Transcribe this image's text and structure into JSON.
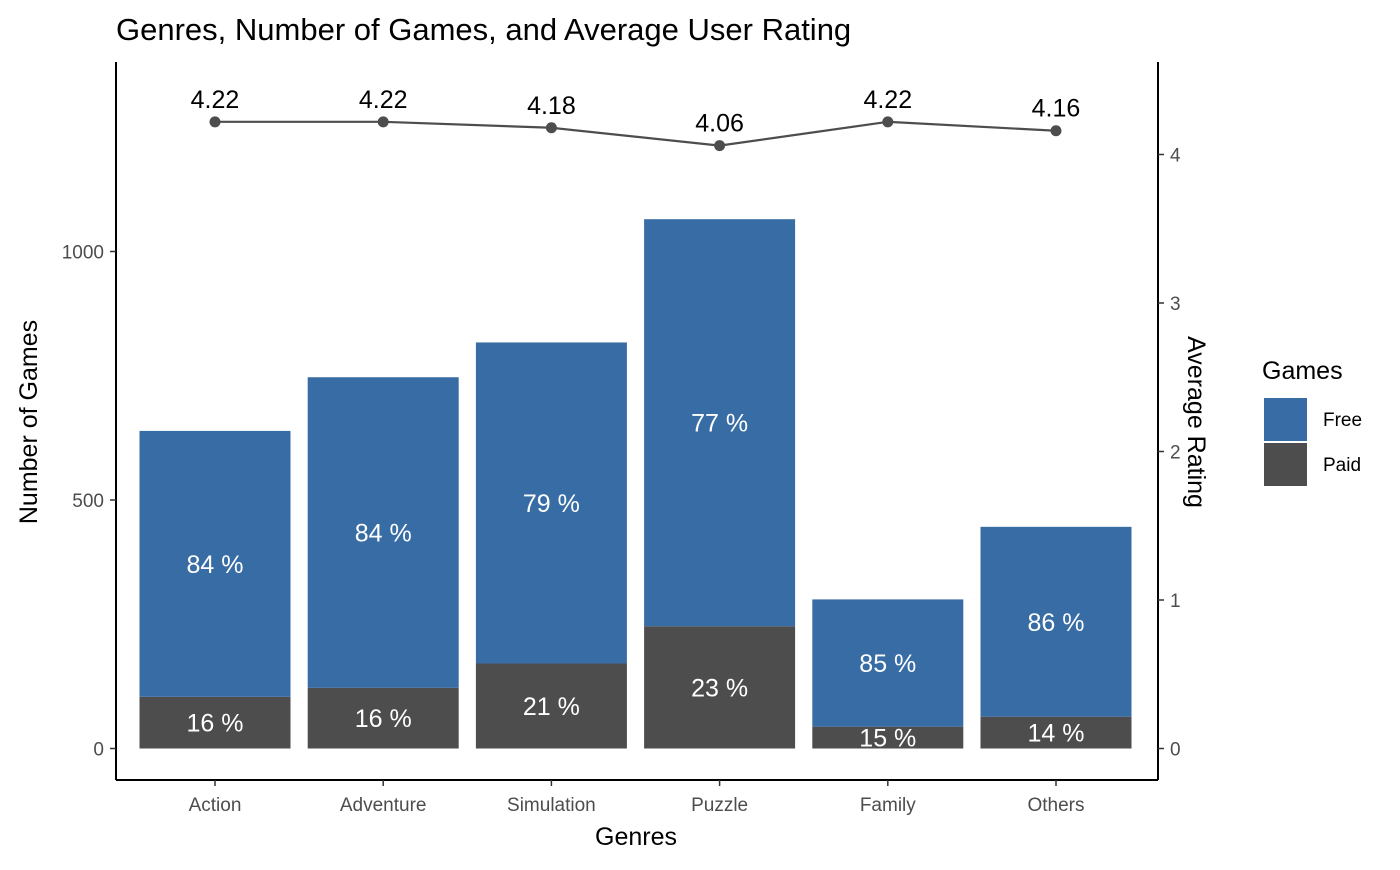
{
  "chart_data": {
    "type": "bar",
    "title": "Genres, Number of Games, and Average User Rating",
    "xlabel": "Genres",
    "ylabel": "Number of Games",
    "y2label": "Average Rating",
    "ylim": [
      0,
      1300
    ],
    "y2lim": [
      0,
      4.55
    ],
    "yticks": [
      0,
      500,
      1000
    ],
    "y2ticks": [
      0,
      1,
      2,
      3,
      4
    ],
    "categories": [
      "Action",
      "Adventure",
      "Simulation",
      "Puzzle",
      "Family",
      "Others"
    ],
    "stacked": true,
    "series": [
      {
        "name": "Paid",
        "color": "#4d4d4d",
        "values": [
          104,
          122,
          171,
          246,
          44,
          64
        ],
        "labels": [
          "16 %",
          "16 %",
          "21 %",
          "23 %",
          "15 %",
          "14 %"
        ]
      },
      {
        "name": "Free",
        "color": "#386ca4",
        "values": [
          535,
          625,
          646,
          819,
          256,
          382
        ],
        "labels": [
          "84 %",
          "84 %",
          "79 %",
          "77 %",
          "85 %",
          "86 %"
        ]
      }
    ],
    "rating_line": {
      "axis": "secondary",
      "color": "#4d4d4d",
      "values": [
        4.22,
        4.22,
        4.18,
        4.06,
        4.22,
        4.16
      ],
      "labels": [
        "4.22",
        "4.22",
        "4.18",
        "4.06",
        "4.22",
        "4.16"
      ]
    },
    "legend": {
      "title": "Games",
      "position": "right",
      "items": [
        {
          "label": "Free",
          "color": "#386ca4"
        },
        {
          "label": "Paid",
          "color": "#4d4d4d"
        }
      ]
    },
    "grid": false
  }
}
